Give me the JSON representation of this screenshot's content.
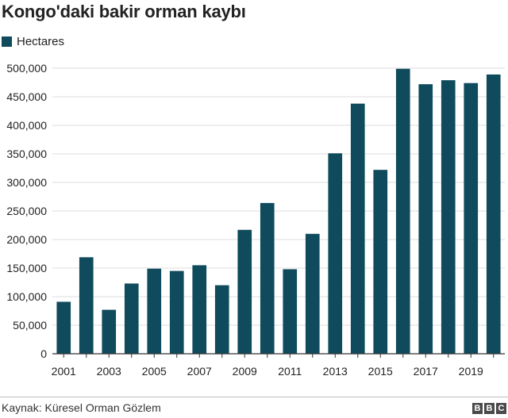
{
  "chart_data": {
    "type": "bar",
    "title": "Kongo'daki bakir orman kaybı",
    "legend": {
      "placement": "top-left",
      "entries": [
        "Hectares"
      ]
    },
    "categories": [
      "2001",
      "2002",
      "2003",
      "2004",
      "2005",
      "2006",
      "2007",
      "2008",
      "2009",
      "2010",
      "2011",
      "2012",
      "2013",
      "2014",
      "2015",
      "2016",
      "2017",
      "2018",
      "2019",
      "2020"
    ],
    "x_tick_labels": [
      "2001",
      "2003",
      "2005",
      "2007",
      "2009",
      "2011",
      "2013",
      "2015",
      "2017",
      "2019"
    ],
    "series": [
      {
        "name": "Hectares",
        "values": [
          91000,
          169000,
          77000,
          123000,
          149000,
          145000,
          155000,
          120000,
          217000,
          264000,
          148000,
          210000,
          351000,
          438000,
          322000,
          499000,
          472000,
          479000,
          474000,
          489000
        ]
      }
    ],
    "y_ticks": [
      0,
      50000,
      100000,
      150000,
      200000,
      250000,
      300000,
      350000,
      400000,
      450000,
      500000
    ],
    "y_tick_labels": [
      "0",
      "50,000",
      "100,000",
      "150,000",
      "200,000",
      "250,000",
      "300,000",
      "350,000",
      "400,000",
      "450,000",
      "500,000"
    ],
    "ylim": [
      0,
      500000
    ],
    "grid": true,
    "xlabel": "",
    "ylabel": ""
  },
  "colors": {
    "bar": "#0f4b5c",
    "grid": "#dcdcdc",
    "axis": "#333333"
  },
  "source": "Kaynak: Küresel Orman Gözlem",
  "logo": {
    "letters": [
      "B",
      "B",
      "C"
    ]
  }
}
